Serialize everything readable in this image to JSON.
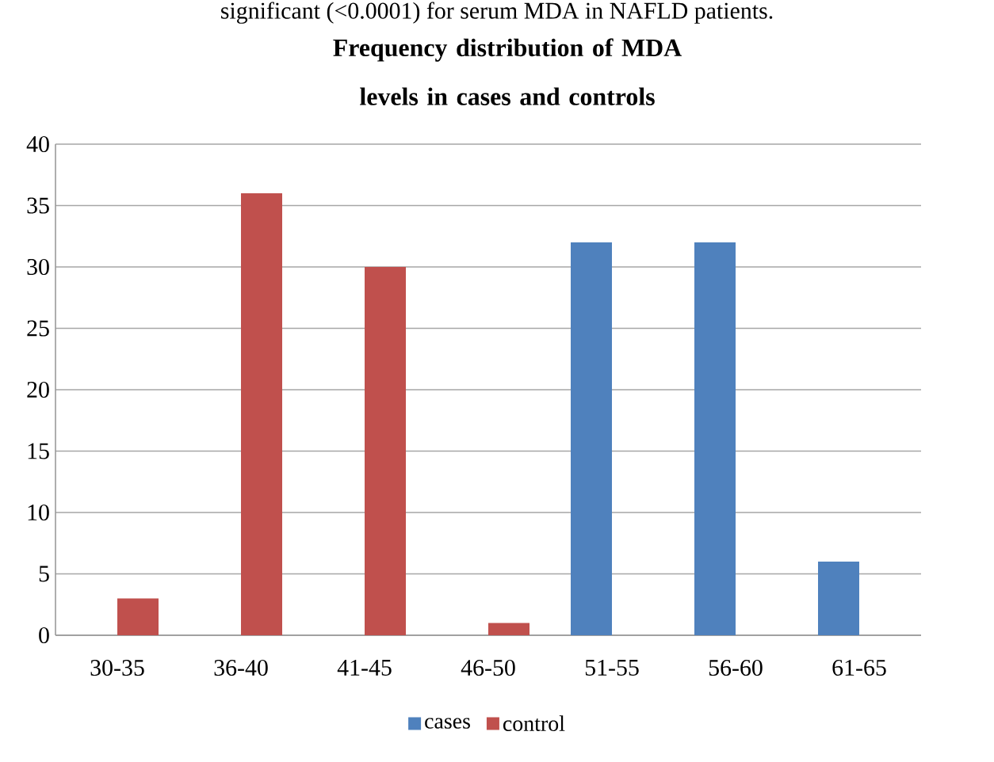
{
  "chart_data": {
    "type": "bar",
    "title": "Frequency distribution of MDA levels in cases and controls",
    "annotations": [
      "significant (<0.0001) for serum MDA in NAFLD patients."
    ],
    "categories": [
      "30-35",
      "36-40",
      "41-45",
      "46-50",
      "51-55",
      "56-60",
      "61-65"
    ],
    "series": [
      {
        "name": "cases",
        "color": "#4f81bd",
        "values": [
          0,
          0,
          0,
          0,
          32,
          32,
          6
        ]
      },
      {
        "name": "control",
        "color": "#c0504d",
        "values": [
          3,
          36,
          30,
          1,
          0,
          0,
          0
        ]
      }
    ],
    "ylim": [
      0,
      40
    ],
    "yticks": [
      0,
      5,
      10,
      15,
      20,
      25,
      30,
      35,
      40
    ],
    "grid": "y",
    "legend": "bottom"
  }
}
